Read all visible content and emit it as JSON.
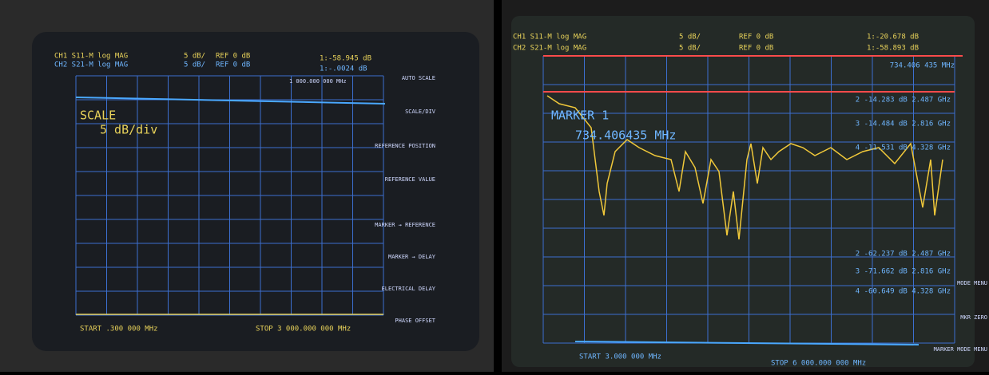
{
  "left_screen": {
    "ch1": {
      "label": "CH1 S11-M log MAG",
      "scale": "5 dB/",
      "ref": "REF 0 dB",
      "marker": "1:-58.945 dB"
    },
    "ch2": {
      "label": "CH2 S21-M log MAG",
      "scale": "5 dB/",
      "ref": "REF 0 dB",
      "marker": "1:-.0024 dB"
    },
    "marker_freq": "1 000.000 000 MHz",
    "scale_title": "SCALE",
    "scale_value": "5 dB/div",
    "softkeys": [
      "AUTO SCALE",
      "SCALE/DIV",
      "REFERENCE POSITION",
      "REFERENCE VALUE",
      "MARKER → REFERENCE",
      "MARKER → DELAY",
      "ELECTRICAL DELAY",
      "PHASE OFFSET"
    ],
    "start": "START .300 000 MHz",
    "stop": "STOP 3 000.000 000 MHz"
  },
  "right_screen": {
    "ch1": {
      "label": "CH1 S11-M log MAG",
      "scale": "5 dB/",
      "ref": "REF 0 dB",
      "marker": "1:-20.678 dB"
    },
    "ch2": {
      "label": "CH2 S21-M log MAG",
      "scale": "5 dB/",
      "ref": "REF 0 dB",
      "marker": "1:-58.893 dB"
    },
    "marker_freq": "734.406 435 MHz",
    "marker_title": "MARKER 1",
    "marker_value": "734.406435 MHz",
    "ch1_markers": [
      "2 -14.283 dB 2.487 GHz",
      "3 -14.484 dB 2.816 GHz",
      "4 -11.531 dB 4.328 GHz"
    ],
    "ch2_markers": [
      "2 -62.237 dB 2.487 GHz",
      "3 -71.662 dB 2.816 GHz",
      "4 -60.649 dB 4.328 GHz"
    ],
    "softkeys": [
      "MODE MENU",
      "MKR ZERO",
      "MARKER MODE MENU"
    ],
    "start": "START 3.000 000 MHz",
    "stop": "STOP 6 000.000 000 MHz"
  }
}
